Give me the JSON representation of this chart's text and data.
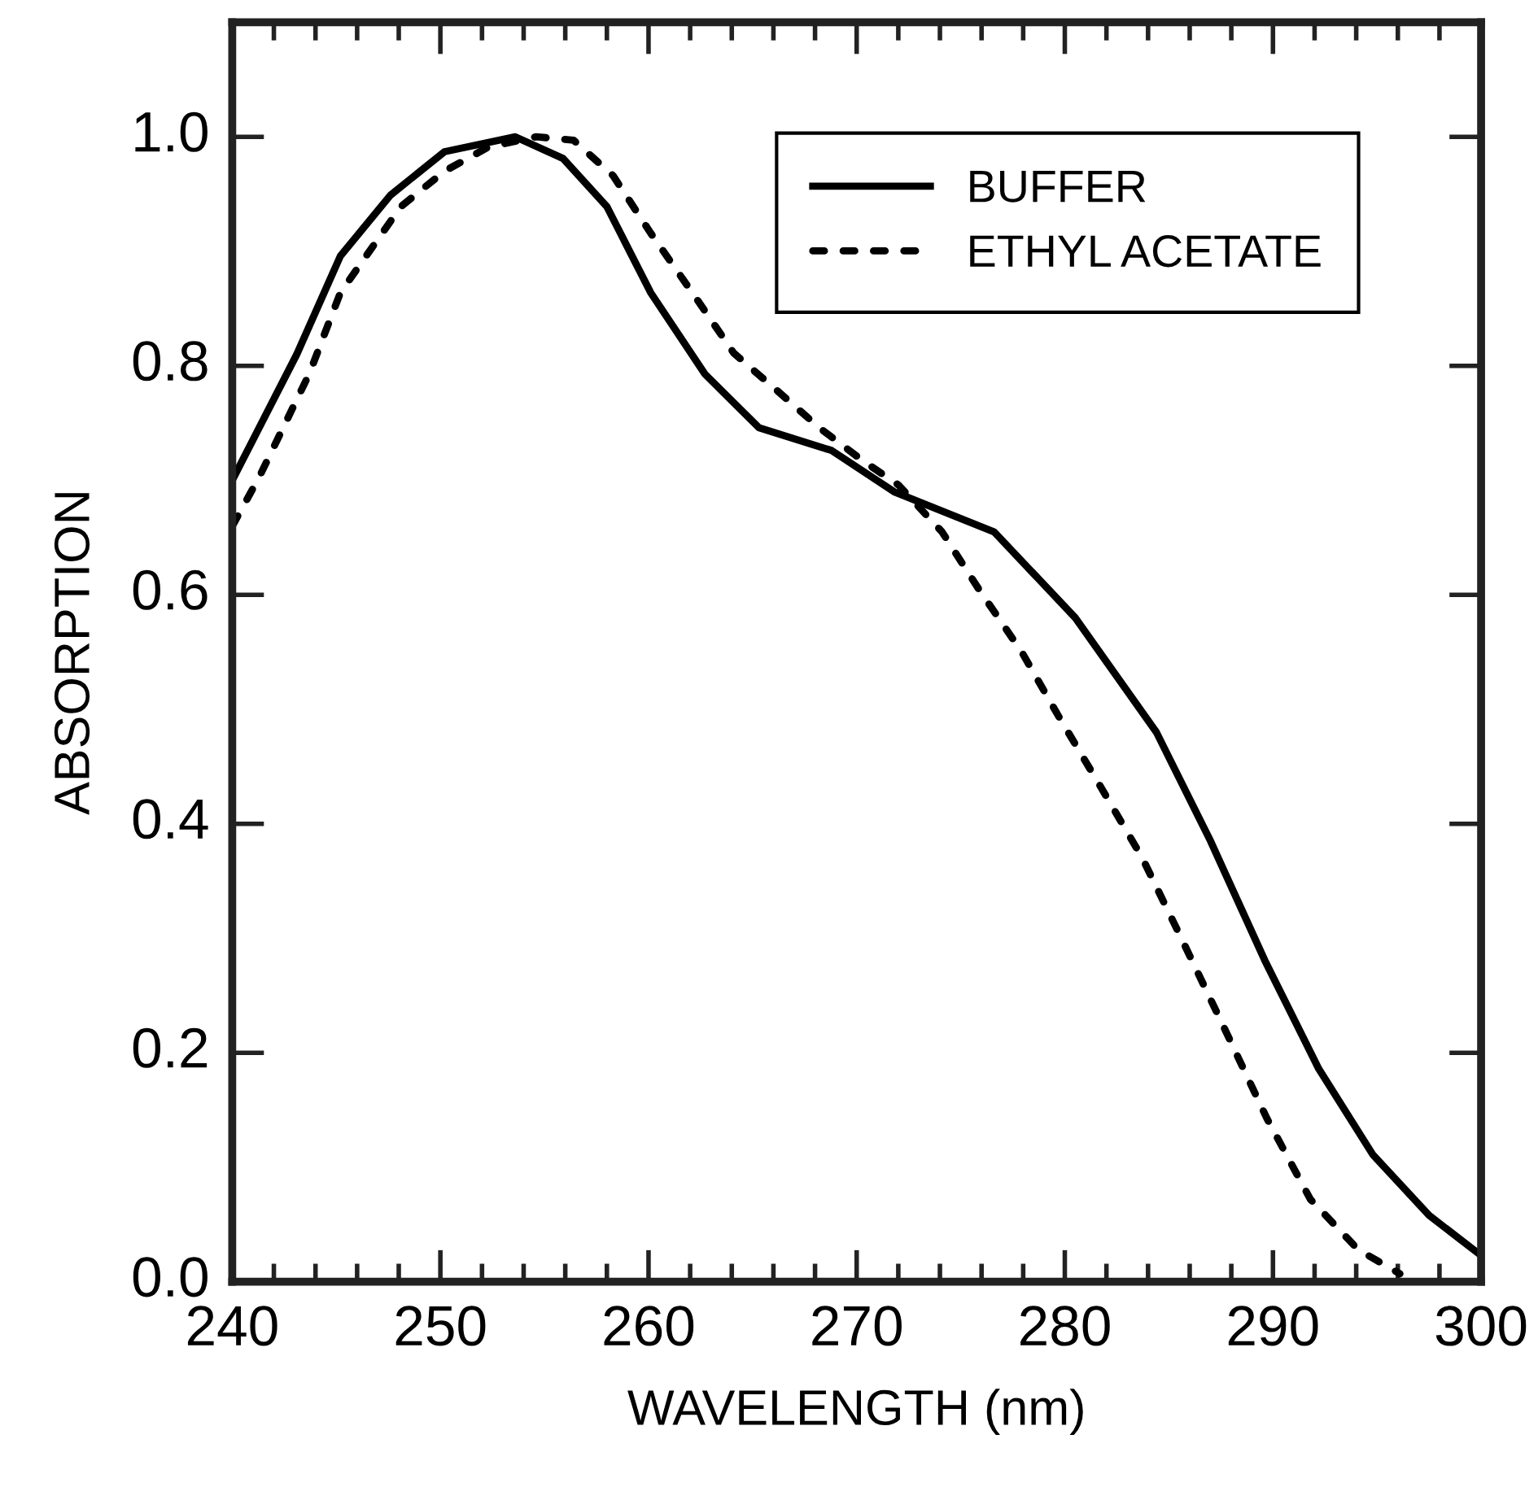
{
  "chart_data": {
    "type": "line",
    "xlabel": "WAVELENGTH (nm)",
    "ylabel": "ABSORPTION",
    "xlim": [
      240,
      300
    ],
    "xticks": [
      240,
      250,
      260,
      270,
      280,
      290,
      300
    ],
    "ylim": [
      0,
      1.1
    ],
    "yticks": [
      {
        "value": 0,
        "label": "0.0"
      },
      0.2,
      0.4,
      0.6,
      0.8,
      {
        "value": 1,
        "label": "1.0"
      }
    ],
    "grid": false,
    "legend": "top right",
    "marker": "none",
    "series": [
      {
        "name": "BUFFER",
        "color": "#000000",
        "line_style": "solid",
        "x": [
          240,
          243.1,
          245.2,
          247.6,
          250.2,
          253.6,
          255.9,
          258,
          260.1,
          262.7,
          265.3,
          268.8,
          271.8,
          276.6,
          280.5,
          284.4,
          287,
          289.6,
          292.2,
          294.8,
          297.5,
          300
        ],
        "values": [
          0.7,
          0.81,
          0.896,
          0.949,
          0.987,
          1.0,
          0.981,
          0.939,
          0.864,
          0.793,
          0.746,
          0.726,
          0.69,
          0.655,
          0.58,
          0.48,
          0.385,
          0.281,
          0.186,
          0.111,
          0.058,
          0.023
        ]
      },
      {
        "name": "ETHYL ACETATE",
        "color": "#000000",
        "line_style": "dashed",
        "x": [
          240,
          241.3,
          243.7,
          245.2,
          248.1,
          250.2,
          252.3,
          254.6,
          256.4,
          258.3,
          260.1,
          262.1,
          264.1,
          266.2,
          268.2,
          270.3,
          272.0,
          274.1,
          275.9,
          277.9,
          279.7,
          281.7,
          283.7,
          285.6,
          287.6,
          289.7,
          291.8,
          294.1,
          296.1
        ],
        "values": [
          0.66,
          0.703,
          0.793,
          0.864,
          0.939,
          0.97,
          0.991,
          1.0,
          0.997,
          0.966,
          0.916,
          0.864,
          0.811,
          0.778,
          0.746,
          0.717,
          0.696,
          0.655,
          0.604,
          0.551,
          0.494,
          0.433,
          0.371,
          0.3,
          0.224,
          0.143,
          0.072,
          0.028,
          0.007
        ]
      }
    ]
  }
}
